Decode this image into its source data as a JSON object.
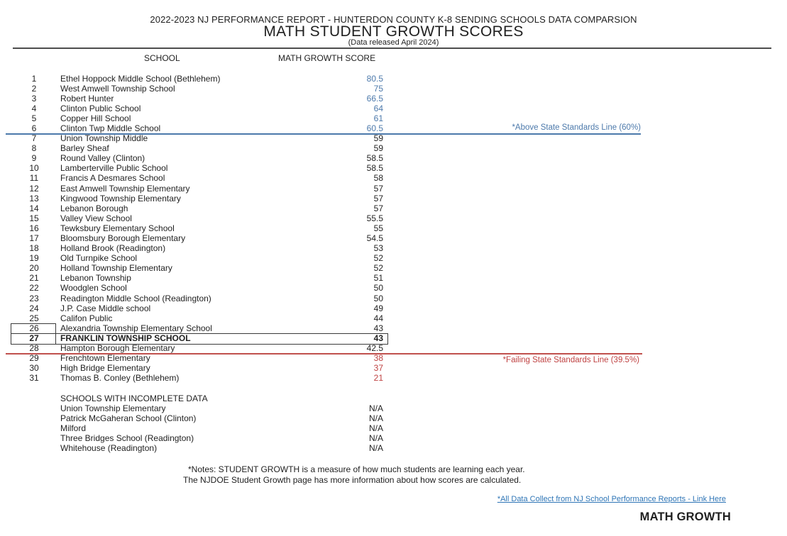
{
  "header": {
    "title_line1": "2022-2023 NJ PERFORMANCE REPORT - HUNTERDON COUNTY K-8 SENDING SCHOOLS DATA COMPARSION",
    "title_line2": "MATH STUDENT GROWTH SCORES",
    "title_line3": "(Data released April 2024)"
  },
  "columns": {
    "school": "SCHOOL",
    "score": "MATH GROWTH SCORE"
  },
  "colors": {
    "score_blue": "#4c79ab",
    "score_red": "#bf4242",
    "red_line": "#c0504d",
    "link_blue": "#2e75b6",
    "header_rule": "#4d4d4d"
  },
  "dividers": {
    "above": {
      "label": "*Above State Standards Line (60%)",
      "value": 60
    },
    "failing": {
      "label": "*Failing State Standards Line (39.5%)",
      "value": 39.5
    }
  },
  "table": {
    "rows": [
      {
        "rank": "1",
        "school": "Ethel Hoppock Middle School (Bethlehem)",
        "score": "80.5"
      },
      {
        "rank": "2",
        "school": "West Amwell Township School",
        "score": "75"
      },
      {
        "rank": "3",
        "school": "Robert Hunter",
        "score": "66.5"
      },
      {
        "rank": "4",
        "school": "Clinton Public School",
        "score": "64"
      },
      {
        "rank": "5",
        "school": "Copper Hill School",
        "score": "61"
      },
      {
        "rank": "6",
        "school": "Clinton Twp Middle School",
        "score": "60.5"
      },
      {
        "rank": "7",
        "school": "Union Township Middle",
        "score": "59"
      },
      {
        "rank": "8",
        "school": "Barley Sheaf",
        "score": "59"
      },
      {
        "rank": "9",
        "school": "Round Valley (Clinton)",
        "score": "58.5"
      },
      {
        "rank": "10",
        "school": "Lamberterville Public School",
        "score": "58.5"
      },
      {
        "rank": "11",
        "school": "Francis A Desmares School",
        "score": "58"
      },
      {
        "rank": "12",
        "school": "East Amwell Township Elementary",
        "score": "57"
      },
      {
        "rank": "13",
        "school": "Kingwood Township Elementary",
        "score": "57"
      },
      {
        "rank": "14",
        "school": "Lebanon Borough",
        "score": "57"
      },
      {
        "rank": "15",
        "school": "Valley View School",
        "score": "55.5"
      },
      {
        "rank": "16",
        "school": "Tewksbury Elementary School",
        "score": "55"
      },
      {
        "rank": "17",
        "school": "Bloomsbury Borough Elementary",
        "score": "54.5"
      },
      {
        "rank": "18",
        "school": "Holland Brook (Readington)",
        "score": "53"
      },
      {
        "rank": "19",
        "school": "Old Turnpike School",
        "score": "52"
      },
      {
        "rank": "20",
        "school": "Holland Township Elementary",
        "score": "52"
      },
      {
        "rank": "21",
        "school": "Lebanon Township",
        "score": "51"
      },
      {
        "rank": "22",
        "school": "Woodglen School",
        "score": "50"
      },
      {
        "rank": "23",
        "school": "Readington Middle School (Readington)",
        "score": "50"
      },
      {
        "rank": "24",
        "school": "J.P. Case Middle school",
        "score": "49"
      },
      {
        "rank": "25",
        "school": "Califon Public",
        "score": "44"
      },
      {
        "rank": "26",
        "school": "Alexandria Township Elementary School",
        "score": "43"
      },
      {
        "rank": "27",
        "school": "FRANKLIN TOWNSHIP SCHOOL",
        "score": "43",
        "bold": true
      },
      {
        "rank": "28",
        "school": "Hampton Borough Elementary",
        "score": "42.5"
      },
      {
        "rank": "29",
        "school": "Frenchtown Elementary",
        "score": "38"
      },
      {
        "rank": "30",
        "school": "High Bridge Elementary",
        "score": "37"
      },
      {
        "rank": "31",
        "school": "Thomas B. Conley (Bethlehem)",
        "score": "21"
      }
    ]
  },
  "incomplete": {
    "header": "SCHOOLS WITH INCOMPLETE DATA",
    "rows": [
      {
        "school": "Union Township Elementary",
        "score": "N/A"
      },
      {
        "school": "Patrick McGaheran School (Clinton)",
        "score": "N/A"
      },
      {
        "school": "Milford",
        "score": "N/A"
      },
      {
        "school": "Three Bridges School (Readington)",
        "score": "N/A"
      },
      {
        "school": "Whitehouse (Readington)",
        "score": "N/A"
      }
    ]
  },
  "notes": {
    "line1": "*Notes: STUDENT GROWTH is a measure of how much students are learning each year.",
    "line2": "The NJDOE Student Growth page has more information about how scores are calculated."
  },
  "footer": {
    "link": "*All Data Collect from NJ School Performance Reports - Link Here",
    "label": "MATH GROWTH"
  }
}
